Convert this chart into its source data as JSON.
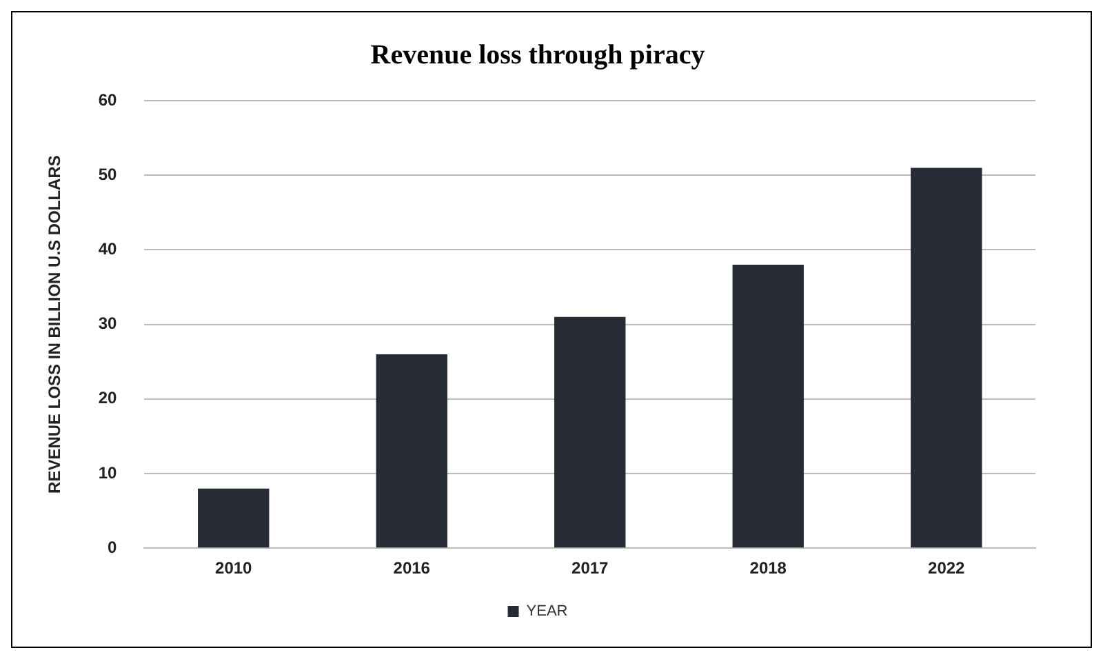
{
  "chart_data": {
    "type": "bar",
    "title": "Revenue loss through piracy",
    "ylabel": "REVENUE LOSS IN BILLION U.S DOLLARS",
    "categories": [
      "2010",
      "2016",
      "2017",
      "2018",
      "2022"
    ],
    "series": [
      {
        "name": "YEAR",
        "color": "#272b36",
        "values": [
          8,
          26,
          31,
          38,
          51
        ]
      }
    ],
    "ylim": [
      0,
      60
    ],
    "yticks": [
      0,
      10,
      20,
      30,
      40,
      50,
      60
    ],
    "grid": "y",
    "legend": "bottom"
  }
}
